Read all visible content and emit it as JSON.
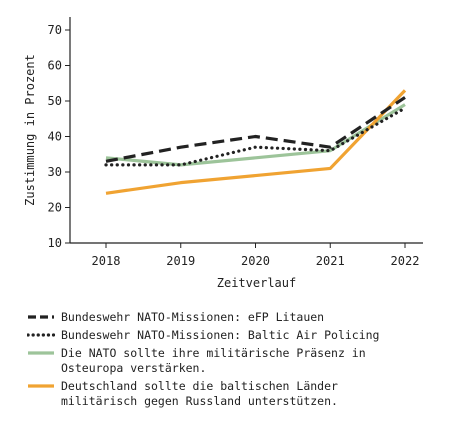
{
  "chart_data": {
    "type": "line",
    "xlabel": "Zeitverlauf",
    "ylabel": "Zustimmung in Prozent",
    "x": [
      "2018",
      "2019",
      "2020",
      "2021",
      "2022"
    ],
    "ylim": [
      10,
      70
    ],
    "yticks": [
      10,
      20,
      30,
      40,
      50,
      60,
      70
    ],
    "grid": false,
    "legend_position": "bottom",
    "series": [
      {
        "name": "Bundeswehr NATO-Missionen: eFP Litauen",
        "values": [
          33,
          37,
          40,
          37,
          51
        ],
        "color": "#222222",
        "style": "dashed"
      },
      {
        "name": "Bundeswehr NATO-Missionen: Baltic Air Policing",
        "values": [
          32,
          32,
          37,
          36,
          48
        ],
        "color": "#222222",
        "style": "dotted"
      },
      {
        "name": "Die NATO sollte ihre militärische Präsenz in\nOsteuropa verstärken.",
        "values": [
          34,
          32,
          34,
          36,
          49
        ],
        "color": "#9dc49a",
        "style": "solid"
      },
      {
        "name": "Deutschland sollte die baltischen Länder\nmilitärisch gegen Russland unterstützen.",
        "values": [
          24,
          27,
          29,
          31,
          53
        ],
        "color": "#f0a332",
        "style": "solid"
      }
    ]
  }
}
